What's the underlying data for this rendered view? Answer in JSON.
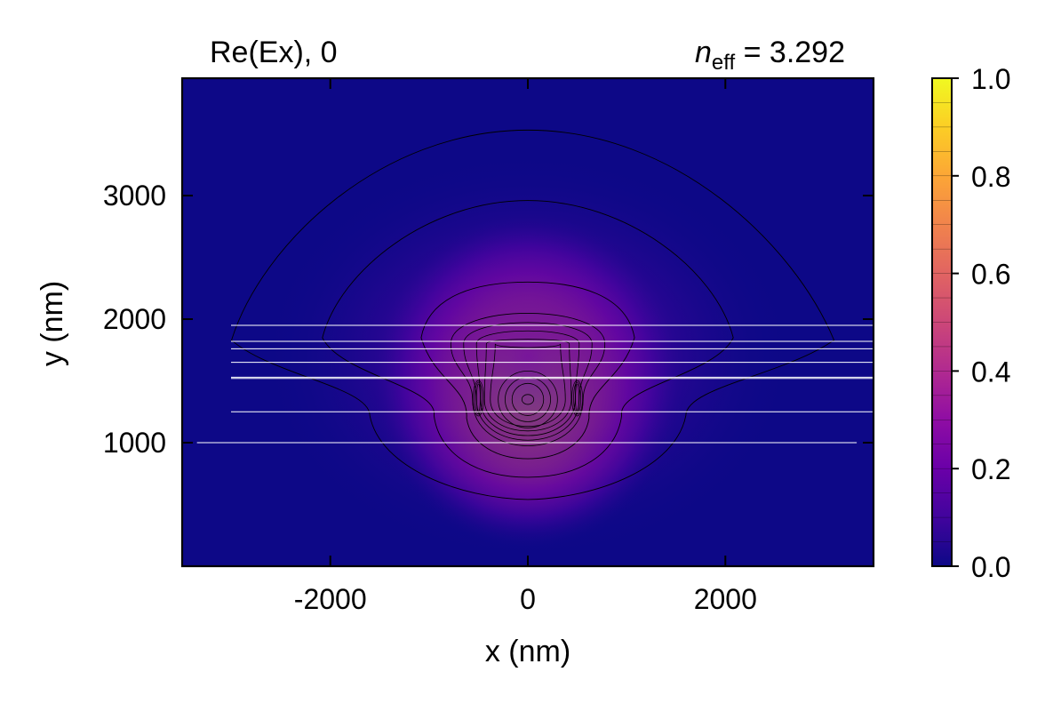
{
  "chart_data": {
    "type": "heatmap",
    "title_left": "Re(Ex), 0",
    "title_right": {
      "symbol": "n",
      "subscript": "eff",
      "relation": " = 3.292"
    },
    "xlabel": "x (nm)",
    "ylabel": "y (nm)",
    "xlim": [
      -3500,
      3500
    ],
    "ylim": [
      0,
      3950
    ],
    "xticks": [
      {
        "value": -2000,
        "label": "-2000"
      },
      {
        "value": 0,
        "label": "0"
      },
      {
        "value": 2000,
        "label": "2000"
      }
    ],
    "yticks": [
      {
        "value": 1000,
        "label": "1000"
      },
      {
        "value": 2000,
        "label": "2000"
      },
      {
        "value": 3000,
        "label": "3000"
      }
    ],
    "colorbar": {
      "colormap": "plasma",
      "min": 0.0,
      "max": 1.0,
      "ticks": [
        {
          "value": 0.0,
          "label": "0.0"
        },
        {
          "value": 0.2,
          "label": "0.2"
        },
        {
          "value": 0.4,
          "label": "0.4"
        },
        {
          "value": 0.6,
          "label": "0.6"
        },
        {
          "value": 0.8,
          "label": "0.8"
        },
        {
          "value": 1.0,
          "label": "1.0"
        }
      ]
    },
    "field_peak": {
      "x": 0,
      "y": 1350,
      "value": 1.0
    },
    "layer_interfaces_y": [
      1000,
      1250,
      1520,
      1530,
      1650,
      1760,
      1820,
      1950
    ],
    "contour_levels": [
      0.01,
      0.05,
      0.1,
      0.2,
      0.3,
      0.4,
      0.5,
      0.6,
      0.7,
      0.8,
      0.9,
      0.98
    ],
    "colors": {
      "background_low": "#0d0887",
      "contour": "#000000",
      "interface": "#ffffff"
    }
  }
}
